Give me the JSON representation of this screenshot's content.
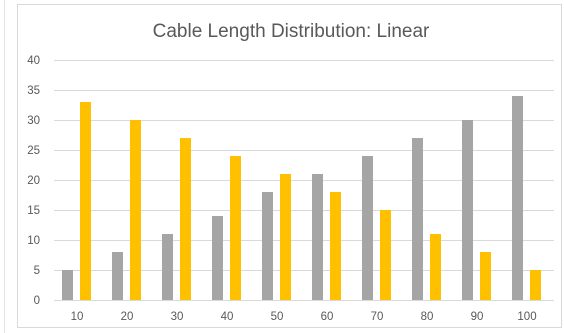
{
  "chart_data": {
    "type": "bar",
    "title": "Cable Length Distribution: Linear",
    "xlabel": "",
    "ylabel": "",
    "categories": [
      "10",
      "20",
      "30",
      "40",
      "50",
      "60",
      "70",
      "80",
      "90",
      "100"
    ],
    "series": [
      {
        "color": "#a5a5a5",
        "values": [
          5,
          8,
          11,
          14,
          18,
          21,
          24,
          27,
          30,
          34
        ]
      },
      {
        "color": "#ffc000",
        "values": [
          33,
          30,
          27,
          24,
          21,
          18,
          15,
          11,
          8,
          5
        ]
      }
    ],
    "ylim": [
      0,
      40
    ],
    "yticks": [
      0,
      5,
      10,
      15,
      20,
      25,
      30,
      35,
      40
    ],
    "grid": true,
    "legend": "none"
  }
}
